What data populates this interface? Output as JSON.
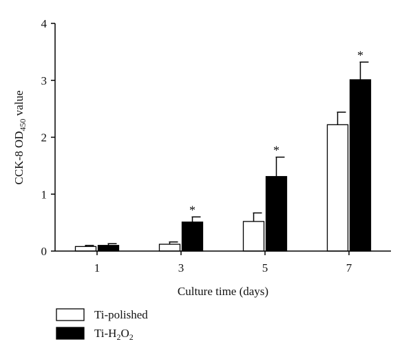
{
  "chart_data": {
    "type": "bar",
    "title": "",
    "xlabel": "Culture time (days)",
    "ylabel_main": "CCK-8 OD",
    "ylabel_sub": "450",
    "ylabel_tail": " value",
    "ylim": [
      0,
      4
    ],
    "yticks": [
      "0",
      "1",
      "2",
      "3",
      "4"
    ],
    "categories": [
      "1",
      "3",
      "5",
      "7"
    ],
    "series": [
      {
        "name": "Ti-polished",
        "legend_parts": [
          {
            "text": "Ti-polished",
            "sub": false
          }
        ],
        "values": [
          0.08,
          0.12,
          0.52,
          2.22
        ],
        "errors": [
          0.02,
          0.04,
          0.15,
          0.22
        ],
        "significance": [
          "",
          "",
          "",
          ""
        ],
        "fill": "#ffffff",
        "stroke": "#000000"
      },
      {
        "name": "Ti-H2O2",
        "legend_parts": [
          {
            "text": "Ti-H",
            "sub": false
          },
          {
            "text": "2",
            "sub": true
          },
          {
            "text": "O",
            "sub": false
          },
          {
            "text": "2",
            "sub": true
          }
        ],
        "values": [
          0.1,
          0.51,
          1.31,
          3.01
        ],
        "errors": [
          0.03,
          0.09,
          0.34,
          0.31
        ],
        "significance": [
          "",
          "*",
          "*",
          "*"
        ],
        "fill": "#000000",
        "stroke": "#000000"
      }
    ],
    "grid": false,
    "legend_position": "bottom-left"
  }
}
